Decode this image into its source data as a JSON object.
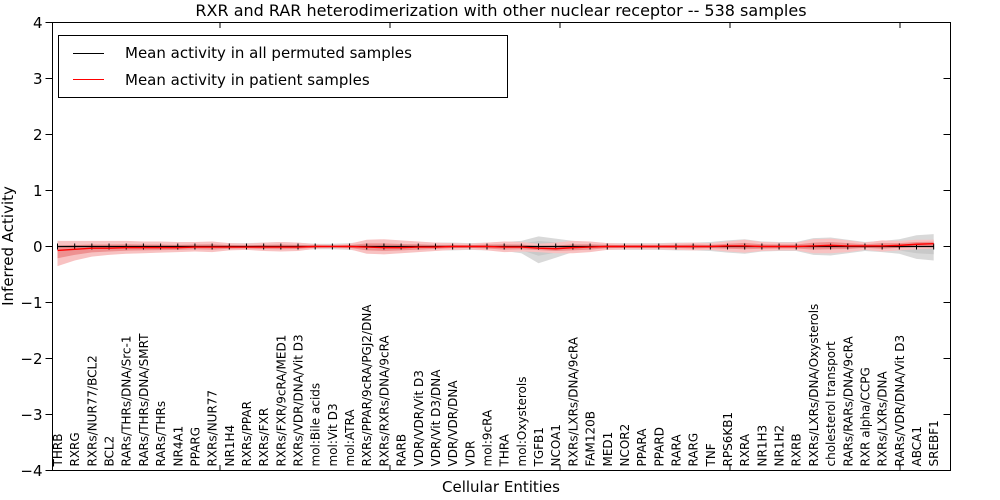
{
  "chart_data": {
    "type": "line",
    "title": "RXR and RAR heterodimerization with other nuclear receptor -- 538 samples",
    "xlabel": "Cellular Entities",
    "ylabel": "Inferred Activity",
    "ylim": [
      -4,
      4
    ],
    "yticks": [
      4,
      3,
      2,
      1,
      0,
      -1,
      -2,
      -3,
      -4
    ],
    "yticklabels": [
      "4",
      "3",
      "2",
      "1",
      "0",
      "−1",
      "−2",
      "−3",
      "−4"
    ],
    "grid": false,
    "legend_position": "upper left",
    "categories": [
      "THRB",
      "RXRG",
      "RXRs/NUR77/BCL2",
      "BCL2",
      "RARs/THRs/DNA/Src-1",
      "RARs/THRs/DNA/SMRT",
      "RARs/THRs",
      "NR4A1",
      "PPARG",
      "RXRs/NUR77",
      "NR1H4",
      "RXRs/PPAR",
      "RXRs/FXR",
      "RXRs/FXR/9cRA/MED1",
      "RXRs/VDR/DNA/Vit D3",
      "mol:Bile acids",
      "mol:Vit D3",
      "mol:ATRA",
      "RXRs/PPAR/9cRA/PGJ2/DNA",
      "RXRs/RXRs/DNA/9cRA",
      "RARB",
      "VDR/VDR/Vit D3",
      "VDR/Vit D3/DNA",
      "VDR/VDR/DNA",
      "VDR",
      "mol:9cRA",
      "THRA",
      "mol:Oxysterols",
      "TGFB1",
      "NCOA1",
      "RXRs/LXRs/DNA/9cRA",
      "FAM120B",
      "MED1",
      "NCOR2",
      "PPARA",
      "PPARD",
      "RARA",
      "RARG",
      "TNF",
      "RPS6KB1",
      "RXRA",
      "NR1H3",
      "NR1H2",
      "RXRB",
      "RXRs/LXRs/DNA/Oxysterols",
      "cholesterol transport",
      "RARs/RARs/DNA/9cRA",
      "RXR alpha/CCPG",
      "RXRs/LXRs/DNA",
      "RARs/VDR/DNA/Vit D3",
      "ABCA1",
      "SREBF1"
    ],
    "series": [
      {
        "name": "Mean activity in all permuted samples",
        "color": "#000000",
        "mean": [
          0,
          0,
          0,
          0,
          0,
          0,
          0,
          0,
          0,
          0,
          0,
          0,
          0,
          0,
          0,
          0,
          0,
          0,
          0,
          0,
          0,
          0,
          0,
          0,
          0,
          0,
          0,
          0,
          0,
          0,
          0,
          0,
          0,
          0,
          0,
          0,
          0,
          0,
          0,
          0,
          0,
          0,
          0,
          0,
          0,
          0,
          0,
          0,
          0,
          0,
          0,
          0
        ],
        "band_upper": [
          0.1,
          0.09,
          0.08,
          0.08,
          0.08,
          0.08,
          0.07,
          0.07,
          0.07,
          0.07,
          0.06,
          0.06,
          0.07,
          0.08,
          0.07,
          0.05,
          0.05,
          0.06,
          0.09,
          0.1,
          0.09,
          0.08,
          0.07,
          0.07,
          0.06,
          0.07,
          0.08,
          0.1,
          0.18,
          0.14,
          0.1,
          0.08,
          0.06,
          0.06,
          0.06,
          0.06,
          0.07,
          0.07,
          0.08,
          0.11,
          0.13,
          0.09,
          0.08,
          0.08,
          0.15,
          0.16,
          0.12,
          0.08,
          0.1,
          0.13,
          0.2,
          0.22
        ],
        "band_lower": [
          -0.2,
          -0.16,
          -0.12,
          -0.1,
          -0.09,
          -0.08,
          -0.07,
          -0.07,
          -0.07,
          -0.07,
          -0.06,
          -0.06,
          -0.07,
          -0.08,
          -0.07,
          -0.05,
          -0.05,
          -0.06,
          -0.09,
          -0.1,
          -0.09,
          -0.08,
          -0.07,
          -0.07,
          -0.06,
          -0.07,
          -0.08,
          -0.12,
          -0.3,
          -0.2,
          -0.1,
          -0.08,
          -0.06,
          -0.06,
          -0.06,
          -0.06,
          -0.07,
          -0.07,
          -0.08,
          -0.11,
          -0.13,
          -0.09,
          -0.08,
          -0.08,
          -0.15,
          -0.16,
          -0.12,
          -0.08,
          -0.1,
          -0.13,
          -0.22,
          -0.25
        ]
      },
      {
        "name": "Mean activity in patient samples",
        "color": "#ff0000",
        "mean": [
          -0.07,
          -0.05,
          -0.03,
          -0.03,
          -0.02,
          -0.02,
          -0.02,
          -0.02,
          -0.01,
          -0.01,
          -0.01,
          -0.01,
          -0.01,
          -0.01,
          -0.01,
          0,
          0,
          0,
          -0.01,
          -0.02,
          -0.02,
          -0.01,
          -0.01,
          0,
          0,
          0,
          -0.01,
          -0.01,
          -0.03,
          -0.04,
          -0.02,
          -0.01,
          0,
          0,
          0,
          0,
          0,
          0,
          0,
          0.01,
          0.01,
          0,
          0,
          0,
          0.01,
          0.02,
          0.01,
          0.01,
          0.01,
          0.02,
          0.04,
          0.05
        ],
        "band_upper": [
          0.1,
          0.1,
          0.1,
          0.1,
          0.1,
          0.09,
          0.09,
          0.08,
          0.08,
          0.09,
          0.06,
          0.05,
          0.07,
          0.08,
          0.07,
          0.04,
          0.03,
          0.05,
          0.12,
          0.13,
          0.11,
          0.09,
          0.07,
          0.06,
          0.05,
          0.07,
          0.09,
          0.08,
          0.05,
          0.07,
          0.1,
          0.09,
          0.06,
          0.05,
          0.05,
          0.05,
          0.06,
          0.07,
          0.06,
          0.09,
          0.12,
          0.08,
          0.07,
          0.07,
          0.13,
          0.14,
          0.11,
          0.07,
          0.11,
          0.1,
          0.12,
          0.12
        ],
        "band_lower": [
          -0.35,
          -0.25,
          -0.18,
          -0.15,
          -0.13,
          -0.12,
          -0.11,
          -0.1,
          -0.09,
          -0.1,
          -0.07,
          -0.06,
          -0.08,
          -0.09,
          -0.08,
          -0.04,
          -0.03,
          -0.05,
          -0.13,
          -0.14,
          -0.12,
          -0.1,
          -0.08,
          -0.06,
          -0.05,
          -0.07,
          -0.1,
          -0.09,
          -0.1,
          -0.12,
          -0.12,
          -0.1,
          -0.06,
          -0.05,
          -0.05,
          -0.05,
          -0.06,
          -0.07,
          -0.06,
          -0.09,
          -0.11,
          -0.08,
          -0.07,
          -0.07,
          -0.12,
          -0.12,
          -0.1,
          -0.06,
          -0.09,
          -0.07,
          -0.05,
          -0.04
        ]
      }
    ]
  },
  "colors": {
    "permuted_line": "#000000",
    "patient_line": "#ff0000",
    "permuted_band": "#d9d9d9",
    "permuted_band_inner": "#c9c9c9",
    "patient_band": "#f8c2c2",
    "patient_band_inner": "#ee9191",
    "axis": "#000000",
    "background": "#ffffff"
  }
}
